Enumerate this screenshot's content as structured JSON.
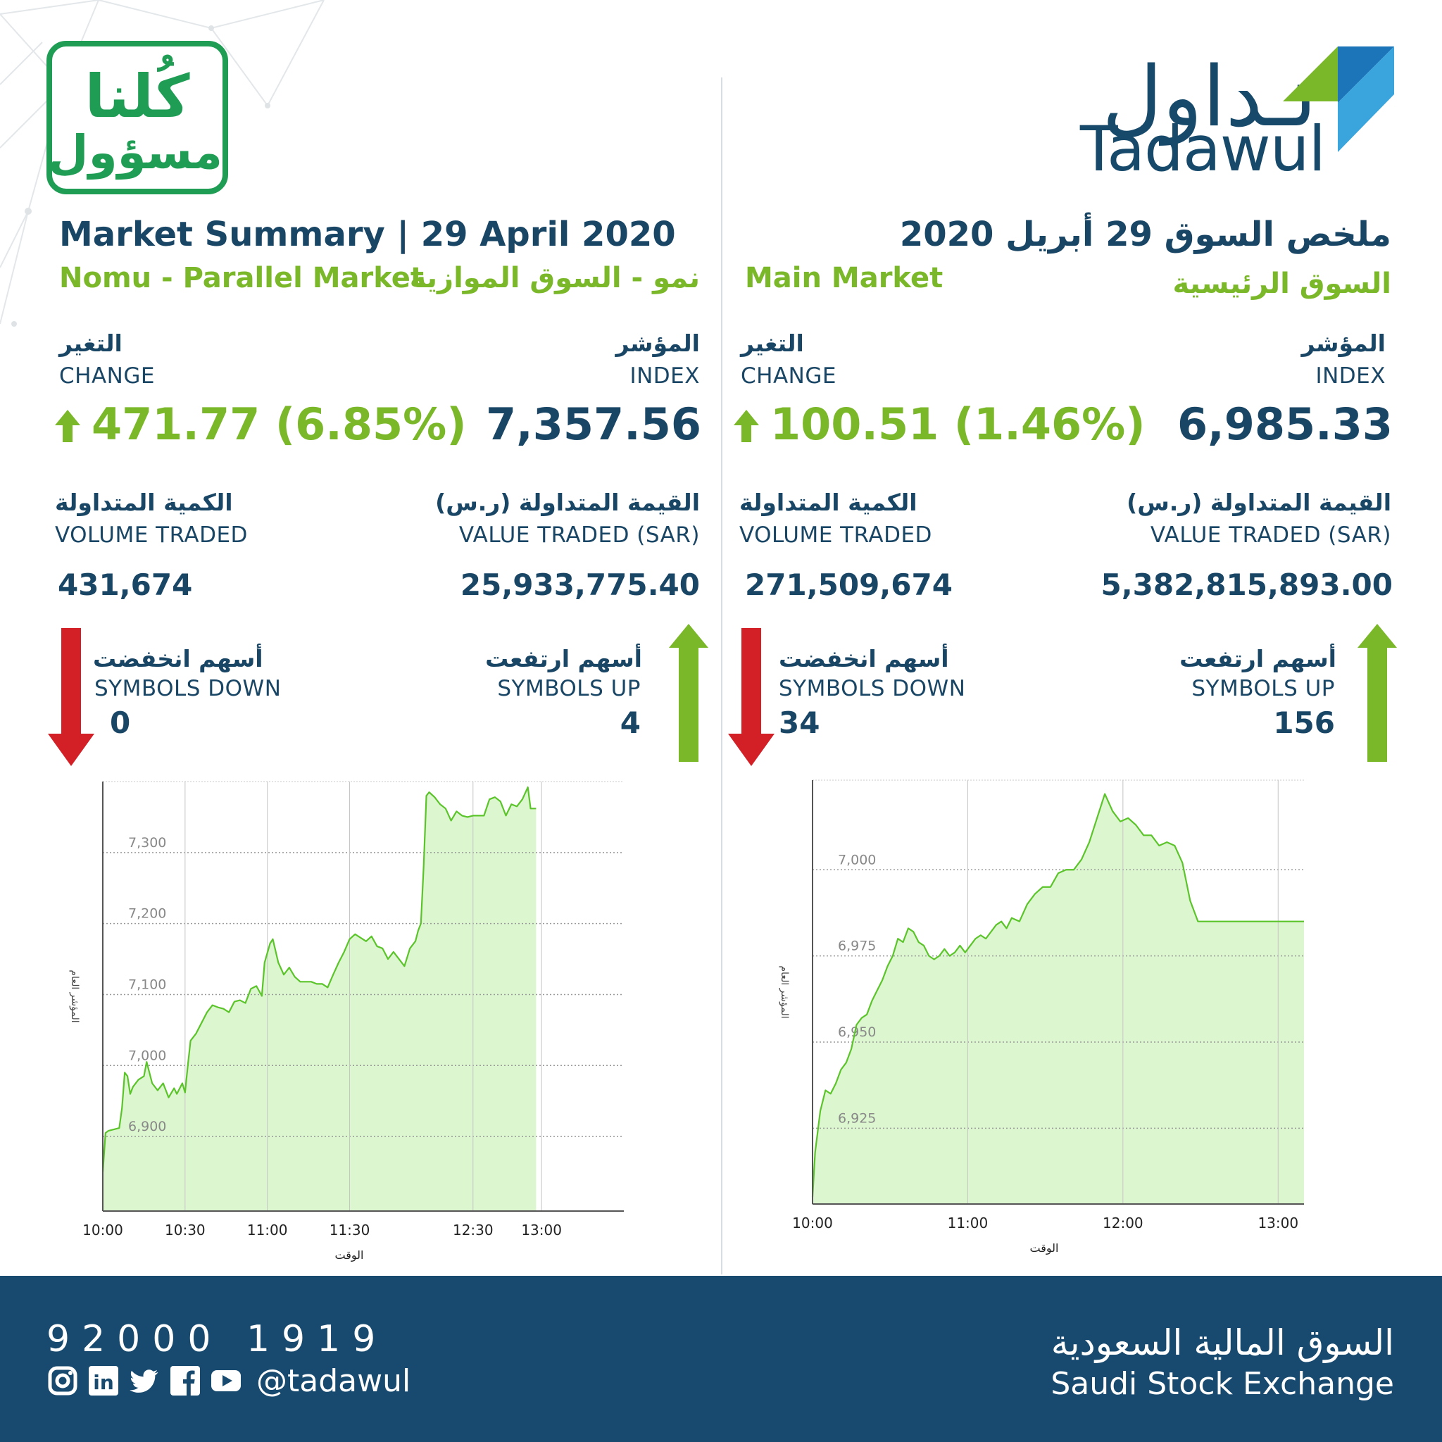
{
  "campaign": {
    "line1": "كُلنا",
    "line2": "مسؤول"
  },
  "brand": {
    "name_ar": "تـداول",
    "name_en": "Tadawul"
  },
  "nomu": {
    "title_en": "Market Summary | 29 April 2020",
    "subtitle_en": "Nomu - Parallel Market",
    "subtitle_ar": "نمو - السوق الموازية",
    "index_label_ar": "المؤشر",
    "index_label_en": "INDEX",
    "index_value": "7,357.56",
    "change_label_ar": "التغير",
    "change_label_en": "CHANGE",
    "change_value": "471.77 (6.85%)",
    "value_label_ar": "القيمة المتداولة (ر.س)",
    "value_label_en": "VALUE TRADED (SAR)",
    "value_traded": "25,933,775.40",
    "volume_label_ar": "الكمية المتداولة",
    "volume_label_en": "VOLUME TRADED",
    "volume_traded": "431,674",
    "up_label_ar": "أسهم ارتفعت",
    "up_label_en": "SYMBOLS UP",
    "symbols_up": "4",
    "down_label_ar": "أسهم انخفضت",
    "down_label_en": "SYMBOLS DOWN",
    "symbols_down": "0"
  },
  "main": {
    "title_ar": "ملخص السوق 29 أبريل 2020",
    "subtitle_en": "Main Market",
    "subtitle_ar": "السوق الرئيسية",
    "index_label_ar": "المؤشر",
    "index_label_en": "INDEX",
    "index_value": "6,985.33",
    "change_label_ar": "التغير",
    "change_label_en": "CHANGE",
    "change_value": "100.51 (1.46%)",
    "value_label_ar": "القيمة المتداولة (ر.س)",
    "value_label_en": "VALUE TRADED (SAR)",
    "value_traded": "5,382,815,893.00",
    "volume_label_ar": "الكمية المتداولة",
    "volume_label_en": "VOLUME TRADED",
    "volume_traded": "271,509,674",
    "up_label_ar": "أسهم ارتفعت",
    "up_label_en": "SYMBOLS UP",
    "symbols_up": "156",
    "down_label_ar": "أسهم انخفضت",
    "down_label_en": "SYMBOLS DOWN",
    "symbols_down": "34"
  },
  "colors": {
    "navy": "#1a4666",
    "green": "#7ab829",
    "red": "#d32027",
    "chart_fill": "#dcf7cf",
    "chart_line": "#5bc42a",
    "footer": "#174a6e"
  },
  "footer": {
    "phone": "92000 1919",
    "handle": "@tadawul",
    "social_icons": [
      "instagram-icon",
      "linkedin-icon",
      "twitter-icon",
      "facebook-icon",
      "youtube-icon"
    ],
    "exchange_ar": "السوق المالية السعودية",
    "exchange_en": "Saudi Stock Exchange"
  },
  "chart_data": [
    {
      "type": "area",
      "title": "",
      "xlabel": "الوقت",
      "ylabel": "المؤشر العام",
      "xlim": [
        0,
        190
      ],
      "ylim": [
        6795,
        7400
      ],
      "x_ticks": [
        0,
        30,
        60,
        90,
        135,
        160
      ],
      "x_tick_labels": [
        "10:00",
        "10:30",
        "11:00",
        "11:30",
        "12:30",
        "13:00"
      ],
      "y_ticks": [
        6900,
        7000,
        7100,
        7200,
        7300
      ],
      "y_tick_labels": [
        "6,900",
        "7,000",
        "7,100",
        "7,200",
        "7,300"
      ],
      "grid": true,
      "series": [
        {
          "x": [
            0,
            1,
            2,
            4,
            6,
            7,
            8,
            9,
            10,
            11,
            13,
            15,
            16,
            18,
            20,
            22,
            24,
            26,
            27,
            29,
            30,
            31,
            32,
            34,
            36,
            38,
            40,
            42,
            44,
            46,
            48,
            50,
            52,
            54,
            56,
            58,
            59,
            61,
            62,
            64,
            66,
            68,
            70,
            72,
            74,
            76,
            78,
            80,
            82,
            84,
            86,
            88,
            90,
            92,
            94,
            96,
            98,
            100,
            102,
            104,
            106,
            108,
            110,
            112,
            114,
            115,
            116,
            117,
            118,
            119,
            121,
            123,
            125,
            127,
            129,
            131,
            133,
            135,
            137,
            139,
            141,
            143,
            145,
            147,
            149,
            151,
            153,
            155,
            156,
            158
          ],
          "y": [
            6850,
            6905,
            6908,
            6910,
            6912,
            6940,
            6990,
            6985,
            6960,
            6970,
            6980,
            6985,
            7005,
            6975,
            6965,
            6975,
            6955,
            6968,
            6960,
            6975,
            6962,
            7000,
            7035,
            7045,
            7060,
            7075,
            7085,
            7082,
            7080,
            7075,
            7090,
            7092,
            7088,
            7108,
            7112,
            7098,
            7145,
            7172,
            7178,
            7145,
            7128,
            7138,
            7125,
            7118,
            7118,
            7118,
            7115,
            7115,
            7110,
            7128,
            7145,
            7160,
            7178,
            7185,
            7180,
            7175,
            7182,
            7168,
            7165,
            7150,
            7160,
            7150,
            7140,
            7165,
            7175,
            7190,
            7200,
            7280,
            7380,
            7385,
            7378,
            7368,
            7362,
            7345,
            7358,
            7352,
            7350,
            7352,
            7352,
            7352,
            7375,
            7378,
            7372,
            7352,
            7368,
            7365,
            7375,
            7392,
            7362,
            7362
          ]
        }
      ]
    },
    {
      "type": "area",
      "title": "",
      "xlabel": "الوقت",
      "ylabel": "المؤشر العام",
      "xlim": [
        0,
        190
      ],
      "ylim": [
        6903,
        7026
      ],
      "x_ticks": [
        0,
        60,
        120,
        180
      ],
      "x_tick_labels": [
        "10:00",
        "11:00",
        "12:00",
        "13:00"
      ],
      "y_ticks": [
        6925,
        6950,
        6975,
        7000
      ],
      "y_tick_labels": [
        "6,925",
        "6,950",
        "6,975",
        "7,000"
      ],
      "grid": true,
      "series": [
        {
          "x": [
            0,
            1,
            3,
            5,
            7,
            9,
            11,
            13,
            15,
            17,
            19,
            21,
            23,
            25,
            27,
            29,
            31,
            33,
            35,
            37,
            39,
            41,
            43,
            45,
            47,
            49,
            51,
            53,
            55,
            57,
            59,
            61,
            63,
            65,
            67,
            69,
            71,
            73,
            75,
            77,
            80,
            83,
            86,
            89,
            92,
            95,
            98,
            101,
            104,
            107,
            110,
            113,
            116,
            119,
            122,
            125,
            128,
            131,
            134,
            137,
            140,
            143,
            146,
            149,
            152,
            155,
            158,
            161,
            164,
            167,
            170,
            173,
            176,
            179,
            182,
            185,
            188,
            190
          ],
          "y": [
            6905,
            6918,
            6930,
            6936,
            6935,
            6938,
            6942,
            6944,
            6948,
            6955,
            6957,
            6958,
            6962,
            6965,
            6968,
            6972,
            6975,
            6980,
            6979,
            6983,
            6982,
            6979,
            6978,
            6975,
            6974,
            6975,
            6977,
            6975,
            6976,
            6978,
            6976,
            6978,
            6980,
            6981,
            6980,
            6982,
            6984,
            6985,
            6983,
            6986,
            6985,
            6990,
            6993,
            6995,
            6995,
            6999,
            7000,
            7000,
            7003,
            7008,
            7015,
            7022,
            7017,
            7014,
            7015,
            7013,
            7010,
            7010,
            7007,
            7008,
            7007,
            7002,
            6991,
            6985,
            6985,
            6985,
            6985,
            6985,
            6985,
            6985,
            6985,
            6985,
            6985,
            6985,
            6985,
            6985,
            6985,
            6985
          ]
        }
      ]
    }
  ]
}
